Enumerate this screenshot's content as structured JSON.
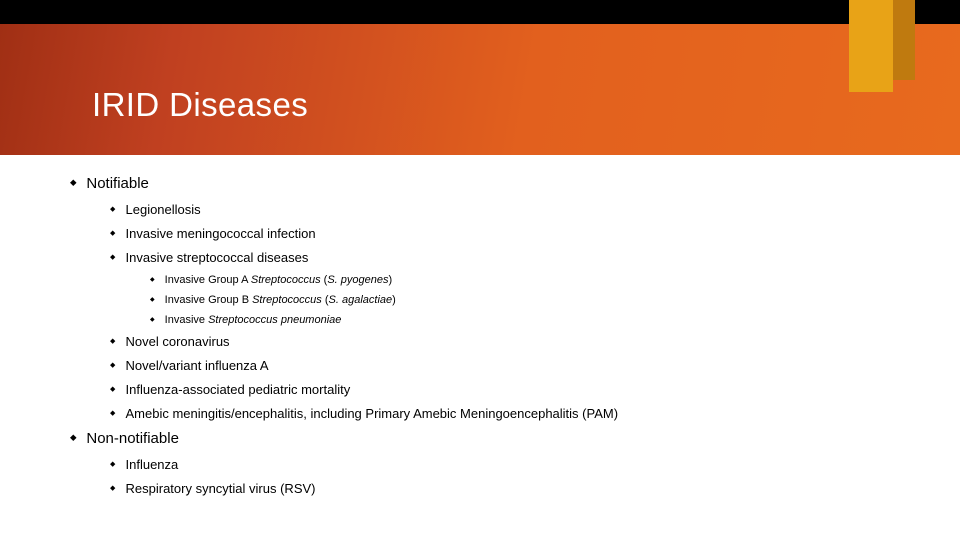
{
  "colors": {
    "header_gradient_start": "#a02f14",
    "header_gradient_end": "#e86a1e",
    "top_border": "#000000",
    "accent_front": "#e8a317",
    "accent_back": "#bf7a0f",
    "title_color": "#ffffff",
    "text_color": "#000000"
  },
  "typography": {
    "title_fontsize": 33,
    "level1_fontsize": 15,
    "level2_fontsize": 13,
    "level3_fontsize": 11
  },
  "title": "IRID Diseases",
  "bullets": {
    "notifiable": "Notifiable",
    "legionellosis": "Legionellosis",
    "invasive_meningo": "Invasive meningococcal infection",
    "invasive_strep": "Invasive streptococcal diseases",
    "group_a_pre": "Invasive Group A ",
    "group_a_ital": "Streptococcus",
    "group_a_post": " (",
    "group_a_ital2": "S. pyogenes",
    "group_a_close": ")",
    "group_b_pre": "Invasive Group B ",
    "group_b_ital": "Streptococcus",
    "group_b_post": " (",
    "group_b_ital2": "S. agalactiae",
    "group_b_close": ")",
    "pneumo_pre": "Invasive ",
    "pneumo_ital": "Streptococcus pneumoniae",
    "novel_corona": "Novel coronavirus",
    "novel_influenza": "Novel/variant influenza A",
    "pediatric": "Influenza-associated pediatric mortality",
    "amebic": "Amebic meningitis/encephalitis, including Primary Amebic Meningoencephalitis (PAM)",
    "non_notifiable": "Non-notifiable",
    "influenza": "Influenza",
    "rsv": "Respiratory syncytial virus (RSV)"
  }
}
